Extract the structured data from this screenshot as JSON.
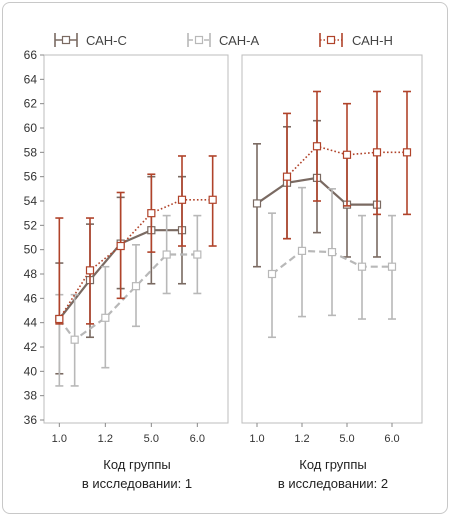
{
  "chart_data": {
    "type": "line",
    "legend_position": "top",
    "y_ticks": [
      "66",
      "64",
      "62",
      "60",
      "58",
      "56",
      "54",
      "52",
      "50",
      "48",
      "46",
      "44",
      "42",
      "40",
      "38",
      "36"
    ],
    "ylim": [
      36,
      66
    ],
    "grid": false,
    "series_meta": [
      {
        "name": "САН-С",
        "color": "#7a6a62",
        "style": "solid"
      },
      {
        "name": "САН-А",
        "color": "#b8b8b8",
        "style": "dashed"
      },
      {
        "name": "САН-Н",
        "color": "#b0432a",
        "style": "dotted"
      }
    ],
    "panels": [
      {
        "xlabel_line1": "Код группы",
        "xlabel_line2": "в исследовании: 1",
        "categories": [
          "1.0",
          "1.2",
          "5.0",
          "6.0"
        ],
        "series": [
          {
            "name": "САН-С",
            "x": [
              1.0,
              2.0,
              3.0,
              4.0,
              5.0
            ],
            "y": [
              44.3,
              47.5,
              50.5,
              51.6,
              51.6
            ],
            "lo": [
              39.8,
              42.8,
              46.8,
              47.2,
              47.2
            ],
            "hi": [
              48.9,
              52.1,
              54.3,
              56.0,
              56.0
            ]
          },
          {
            "name": "САН-А",
            "x": [
              1.0,
              1.5,
              2.5,
              3.5,
              4.5,
              5.5
            ],
            "y": [
              44.3,
              42.6,
              44.4,
              47.0,
              49.6,
              49.6
            ],
            "lo": [
              38.8,
              38.8,
              40.3,
              43.7,
              46.4,
              46.4
            ],
            "hi": [
              46.3,
              46.3,
              48.6,
              50.4,
              52.8,
              52.8
            ]
          },
          {
            "name": "САН-Н",
            "x": [
              1.0,
              2.0,
              3.0,
              4.0,
              5.0,
              6.0
            ],
            "y": [
              44.3,
              48.3,
              50.3,
              53.0,
              54.1,
              54.1
            ],
            "lo": [
              43.9,
              43.9,
              46.0,
              49.8,
              50.3,
              50.3
            ],
            "hi": [
              52.6,
              52.6,
              54.7,
              56.2,
              57.7,
              57.7
            ]
          }
        ]
      },
      {
        "xlabel_line1": "Код группы",
        "xlabel_line2": "в исследовании: 2",
        "categories": [
          "1.0",
          "1.2",
          "5.0",
          "6.0"
        ],
        "series": [
          {
            "name": "САН-С",
            "x": [
              1.0,
              2.0,
              3.0,
              4.0,
              5.0
            ],
            "y": [
              53.8,
              55.5,
              55.9,
              53.7,
              53.7
            ],
            "lo": [
              48.6,
              50.9,
              51.4,
              49.4,
              49.4
            ],
            "hi": [
              58.7,
              60.1,
              60.6,
              57.8,
              57.8
            ]
          },
          {
            "name": "САН-А",
            "x": [
              1.5,
              2.5,
              3.5,
              4.5,
              5.5
            ],
            "y": [
              48.0,
              49.9,
              49.8,
              48.6,
              48.6
            ],
            "lo": [
              42.8,
              44.5,
              44.6,
              44.3,
              44.3
            ],
            "hi": [
              53.0,
              55.1,
              55.0,
              52.8,
              52.8
            ]
          },
          {
            "name": "САН-Н",
            "x": [
              2.0,
              3.0,
              4.0,
              5.0,
              6.0
            ],
            "y": [
              56.0,
              58.5,
              57.8,
              58.0,
              58.0
            ],
            "lo": [
              50.9,
              54.0,
              53.6,
              52.9,
              52.9
            ],
            "hi": [
              61.2,
              63.0,
              62.0,
              63.0,
              63.0
            ]
          }
        ]
      }
    ]
  }
}
